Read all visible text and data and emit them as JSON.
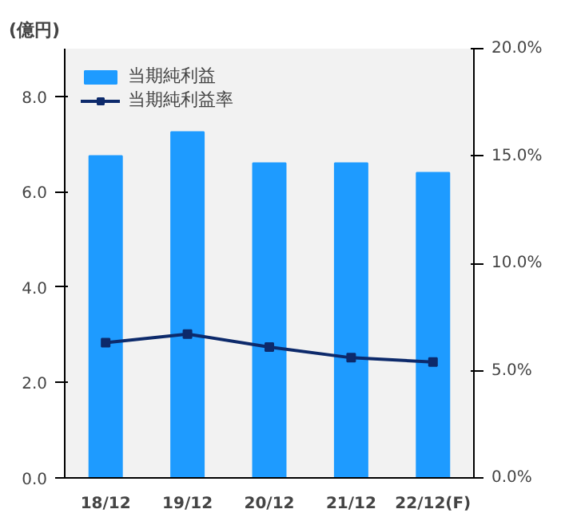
{
  "chart_data": {
    "type": "bar",
    "ylabel": "(億円)",
    "categories": [
      "18/12",
      "19/12",
      "20/12",
      "21/12",
      "22/12(F)"
    ],
    "series": [
      {
        "name": "当期純利益",
        "color": "#1e9bff",
        "values": [
          6.75,
          7.25,
          6.6,
          6.6,
          6.4
        ]
      },
      {
        "name": "当期純利益率",
        "type": "line",
        "axis": "y2",
        "color": "#0d2a6b",
        "marker": "square",
        "values": [
          6.3,
          6.7,
          6.1,
          5.6,
          5.4
        ]
      }
    ],
    "ylim": [
      0,
      9
    ],
    "yticks": [
      {
        "value": 0,
        "label": "0.0"
      },
      {
        "value": 2,
        "label": "2.0"
      },
      {
        "value": 4,
        "label": "4.0"
      },
      {
        "value": 6,
        "label": "6.0"
      },
      {
        "value": 8,
        "label": "8.0"
      }
    ],
    "y2lim": [
      0,
      20
    ],
    "y2ticks": [
      {
        "value": 0,
        "label": "0.0%"
      },
      {
        "value": 5,
        "label": "5.0%"
      },
      {
        "value": 10,
        "label": "10.0%"
      },
      {
        "value": 15,
        "label": "15.0%"
      },
      {
        "value": 20,
        "label": "20.0%"
      }
    ],
    "legend": "top left",
    "grid": false
  }
}
